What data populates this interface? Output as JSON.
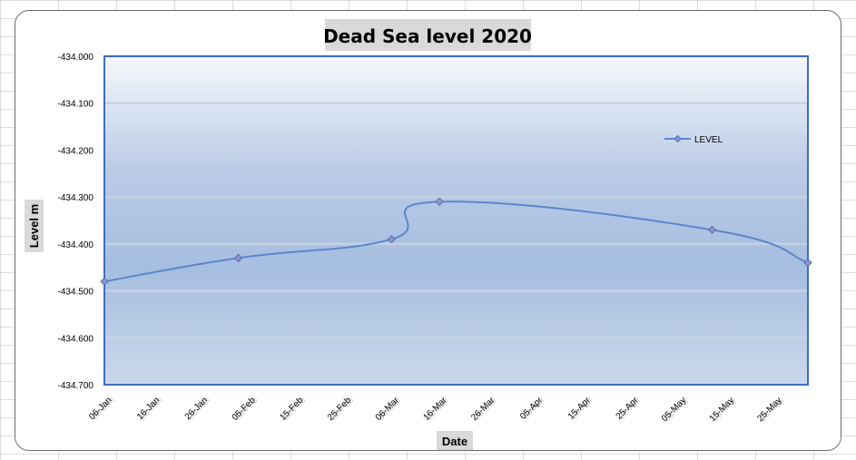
{
  "colors": {
    "line": "#5b86cc",
    "marker_fill": "#9a8fc9",
    "marker_stroke": "#4e73b8",
    "frame": "#3d6fbf"
  },
  "chart_data": {
    "type": "line",
    "title": "Dead Sea level 2020",
    "xlabel": "Date",
    "ylabel": "Level m",
    "ylim": [
      -434.7,
      -434.0
    ],
    "yticks": [
      -434.0,
      -434.1,
      -434.2,
      -434.3,
      -434.4,
      -434.5,
      -434.6,
      -434.7
    ],
    "ytick_labels": [
      "-434.000",
      "-434.100",
      "-434.200",
      "-434.300",
      "-434.400",
      "-434.500",
      "-434.600",
      "-434.700"
    ],
    "xlim": [
      "2020-01-06",
      "2020-06-01"
    ],
    "xticks": [
      "2020-01-06",
      "2020-01-16",
      "2020-01-26",
      "2020-02-05",
      "2020-02-15",
      "2020-02-25",
      "2020-03-06",
      "2020-03-16",
      "2020-03-26",
      "2020-04-05",
      "2020-04-15",
      "2020-04-25",
      "2020-05-05",
      "2020-05-15",
      "2020-05-25"
    ],
    "xtick_labels": [
      "06-Jan",
      "16-Jan",
      "26-Jan",
      "05-Feb",
      "15-Feb",
      "25-Feb",
      "06-Mar",
      "16-Mar",
      "26-Mar",
      "05-Apr",
      "15-Apr",
      "25-Apr",
      "05-May",
      "15-May",
      "25-May"
    ],
    "grid": true,
    "legend": "right",
    "series": [
      {
        "name": "LEVEL",
        "x": [
          "2020-01-06",
          "2020-02-03",
          "2020-03-06",
          "2020-03-16",
          "2020-05-12",
          "2020-06-01"
        ],
        "y": [
          -434.48,
          -434.43,
          -434.39,
          -434.31,
          -434.37,
          -434.44
        ]
      }
    ]
  }
}
